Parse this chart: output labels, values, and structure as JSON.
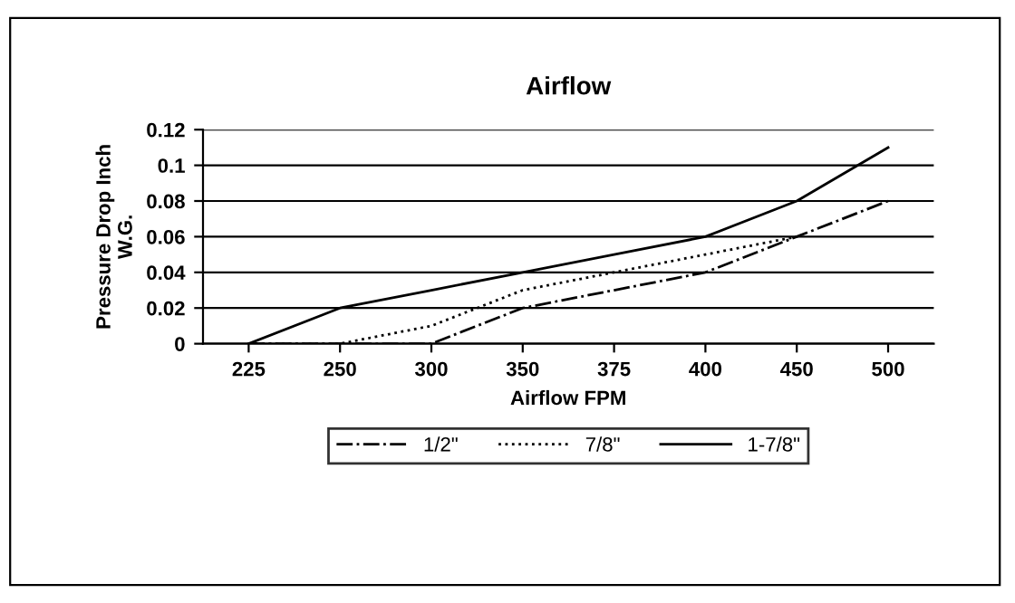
{
  "chart_data": {
    "type": "line",
    "title": "Airflow",
    "xlabel": "Airflow FPM",
    "ylabel": "Pressure Drop Inch\nW.G.",
    "categories": [
      "225",
      "250",
      "300",
      "350",
      "375",
      "400",
      "450",
      "500"
    ],
    "series": [
      {
        "name": "1/2\"",
        "color": "#000000",
        "line_style": "dashdot",
        "values": [
          0,
          0,
          0,
          0.02,
          0.03,
          0.04,
          0.06,
          0.08
        ]
      },
      {
        "name": "7/8\"",
        "color": "#000000",
        "line_style": "dotted",
        "values": [
          0,
          0,
          0.01,
          0.03,
          0.04,
          0.05,
          0.06,
          null
        ]
      },
      {
        "name": "1-7/8\"",
        "color": "#000000",
        "line_style": "solid",
        "values": [
          0,
          0.02,
          0.03,
          0.04,
          0.05,
          0.06,
          0.08,
          0.11
        ]
      }
    ],
    "ylim": [
      0,
      0.12
    ],
    "yticks": [
      0,
      0.02,
      0.04,
      0.06,
      0.08,
      0.1,
      0.12
    ],
    "grid": "y",
    "legend": "bottom",
    "marker": "none"
  }
}
